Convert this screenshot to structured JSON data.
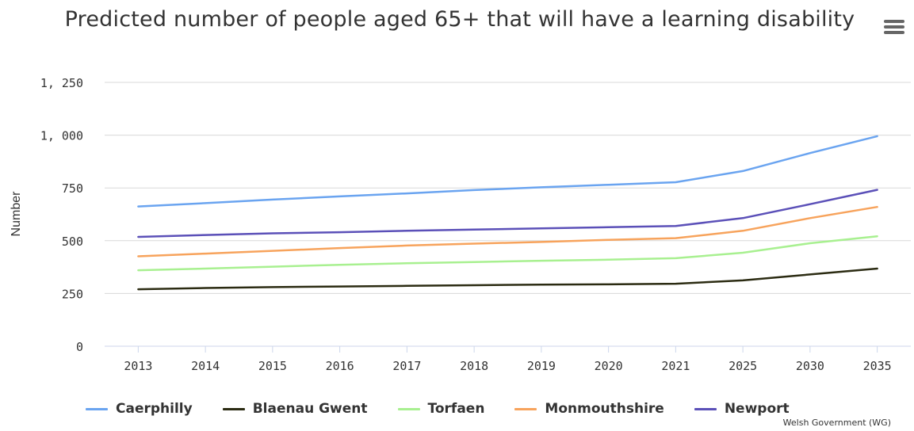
{
  "chart_data": {
    "type": "line",
    "title": "Predicted number of people aged 65+ that will have a learning disability",
    "xlabel": "",
    "ylabel": "Number",
    "categories": [
      "2013",
      "2014",
      "2015",
      "2016",
      "2017",
      "2018",
      "2019",
      "2020",
      "2021",
      "2025",
      "2030",
      "2035"
    ],
    "ylim": [
      0,
      1250
    ],
    "yticks": [
      0,
      250,
      500,
      750,
      1000,
      1250
    ],
    "ytick_labels": [
      "0",
      "250",
      "500",
      "750",
      "1, 000",
      "1, 250"
    ],
    "grid": true,
    "legend_position": "bottom",
    "series": [
      {
        "name": "Caerphilly",
        "color": "#6aa4f0",
        "values": [
          662,
          678,
          695,
          710,
          724,
          740,
          753,
          765,
          777,
          830,
          915,
          995
        ]
      },
      {
        "name": "Blaenau Gwent",
        "color": "#2b2b12",
        "values": [
          270,
          276,
          280,
          283,
          286,
          289,
          292,
          293,
          296,
          312,
          340,
          368
        ]
      },
      {
        "name": "Torfaen",
        "color": "#a8f090",
        "values": [
          360,
          368,
          377,
          386,
          393,
          399,
          405,
          410,
          417,
          443,
          488,
          521
        ]
      },
      {
        "name": "Monmouthshire",
        "color": "#f7a35c",
        "values": [
          426,
          439,
          452,
          465,
          477,
          486,
          494,
          504,
          512,
          547,
          607,
          660
        ]
      },
      {
        "name": "Newport",
        "color": "#5b50b8",
        "values": [
          518,
          527,
          535,
          540,
          547,
          553,
          558,
          564,
          570,
          607,
          673,
          741
        ]
      }
    ],
    "credit": "Welsh Government (WG)"
  },
  "ui": {
    "menu_icon": "hamburger-menu-icon"
  }
}
